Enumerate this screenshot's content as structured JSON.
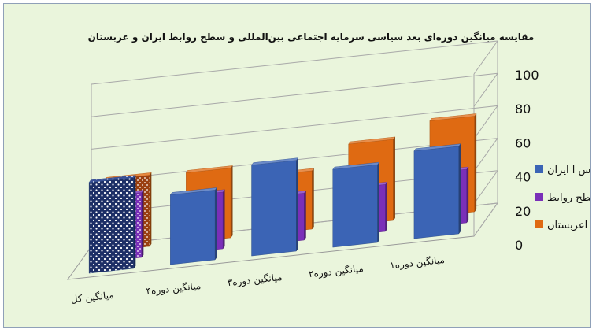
{
  "chart_data": {
    "type": "bar",
    "title": "مقایسه میانگین دوره‌ای بعد سیاسی سرمایه اجتماعی بین‌المللی و سطح روابط ایران و عربستان",
    "categories": [
      "میانگین دوره۱",
      "میانگین دوره۲",
      "میانگین دوره۳",
      "میانگین دوره۴",
      "میانگین کل"
    ],
    "series": [
      {
        "name": "س ا ایران",
        "values": [
          54,
          48,
          56,
          43,
          56
        ],
        "color": "#3b64b5"
      },
      {
        "name": "سطح روابط",
        "values": [
          33,
          29,
          29,
          35,
          40
        ],
        "color": "#7a2fb8"
      },
      {
        "name": "س اعربستان",
        "values": [
          59,
          50,
          36,
          43,
          44
        ],
        "color": "#df6a12"
      }
    ],
    "ylim": [
      0,
      100
    ],
    "yticks": [
      "0",
      "20",
      "40",
      "60",
      "80",
      "100"
    ],
    "grid": true,
    "legend_position": "right",
    "plot_background": "#eaf5dc",
    "highlight_category": "میانگین کل"
  }
}
